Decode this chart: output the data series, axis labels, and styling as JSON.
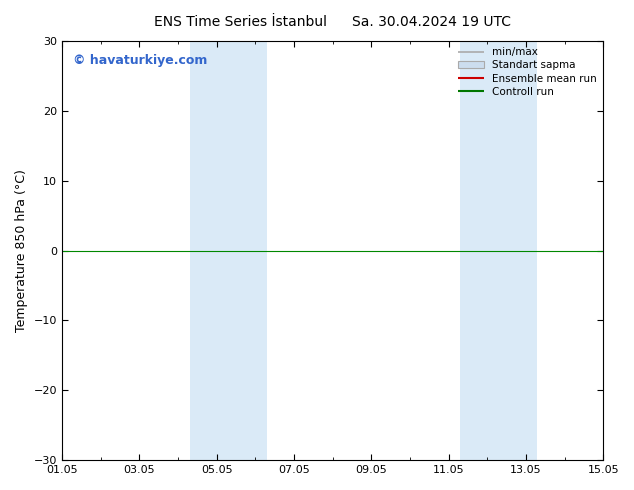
{
  "title": "ENS Time Series İstanbul",
  "title2": "Sa. 30.04.2024 19 UTC",
  "ylabel": "Temperature 850 hPa (°C)",
  "watermark": "© havaturkiye.com",
  "xlim": [
    0,
    14
  ],
  "ylim": [
    -30,
    30
  ],
  "yticks": [
    -30,
    -20,
    -10,
    0,
    10,
    20,
    30
  ],
  "xtick_labels": [
    "01.05",
    "03.05",
    "05.05",
    "07.05",
    "09.05",
    "11.05",
    "13.05",
    "15.05"
  ],
  "xtick_positions": [
    0,
    2,
    4,
    6,
    8,
    10,
    12,
    14
  ],
  "shaded_bands": [
    [
      3.3,
      4.3
    ],
    [
      4.3,
      5.3
    ],
    [
      10.3,
      11.3
    ],
    [
      11.3,
      12.3
    ]
  ],
  "shaded_color": "#daeaf7",
  "hline_y": 0,
  "hline_color": "#008800",
  "hline_lw": 0.8,
  "background_color": "#ffffff",
  "legend_items": [
    {
      "label": "min/max",
      "color": "#aaaaaa",
      "lw": 1.2,
      "style": "-"
    },
    {
      "label": "Standart sapma",
      "color": "#ccddee",
      "edgecolor": "#aaaaaa"
    },
    {
      "label": "Ensemble mean run",
      "color": "#cc0000",
      "lw": 1.5,
      "style": "-"
    },
    {
      "label": "Controll run",
      "color": "#007700",
      "lw": 1.5,
      "style": "-"
    }
  ],
  "title_fontsize": 10,
  "tick_fontsize": 8,
  "ylabel_fontsize": 9,
  "watermark_fontsize": 9,
  "watermark_color": "#3366cc",
  "legend_fontsize": 7.5
}
